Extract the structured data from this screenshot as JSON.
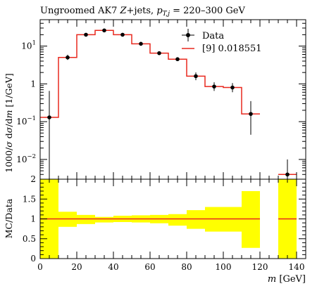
{
  "chart_data": [
    {
      "type": "line",
      "title": "Ungroomed AK7 Z+jets, p_T,j = 220–300 GeV",
      "title_parts": {
        "prefix": "Ungroomed AK7 ",
        "z": "Z",
        "mid": "+jets, ",
        "pt": "p",
        "pt_sub": "T,j",
        "range": " = 220–300 GeV"
      },
      "ylabel": "1000/σ dσ/dm [1/GeV]",
      "ylabel_parts": {
        "a": "1000/",
        "sigma": "σ",
        "b": " d",
        "sigma2": "σ",
        "c": "/d",
        "m": "m",
        "d": " [1/GeV]"
      },
      "yscale": "log",
      "ylim": [
        0.003,
        50
      ],
      "y_ticks": [
        {
          "value": 0.01,
          "base": "10",
          "exp": "−2"
        },
        {
          "value": 0.1,
          "base": "10",
          "exp": "−1"
        },
        {
          "value": 1,
          "base": "1",
          "exp": ""
        },
        {
          "value": 10,
          "base": "10",
          "exp": "1"
        }
      ],
      "xlim": [
        0,
        145
      ],
      "legend": [
        {
          "label": "Data",
          "color": "#000000"
        },
        {
          "label": "[9] 0.018551",
          "color": "#e8281e"
        }
      ],
      "legend_position": "top-right",
      "mc_bins": [
        {
          "x0": 0,
          "x1": 10,
          "y": 0.13
        },
        {
          "x0": 10,
          "x1": 20,
          "y": 5.0
        },
        {
          "x0": 20,
          "x1": 30,
          "y": 20
        },
        {
          "x0": 30,
          "x1": 40,
          "y": 26
        },
        {
          "x0": 40,
          "x1": 50,
          "y": 20
        },
        {
          "x0": 50,
          "x1": 60,
          "y": 11.5
        },
        {
          "x0": 60,
          "x1": 70,
          "y": 6.5
        },
        {
          "x0": 70,
          "x1": 80,
          "y": 4.5
        },
        {
          "x0": 80,
          "x1": 90,
          "y": 1.6
        },
        {
          "x0": 90,
          "x1": 100,
          "y": 0.85
        },
        {
          "x0": 100,
          "x1": 110,
          "y": 0.8
        },
        {
          "x0": 110,
          "x1": 120,
          "y": 0.16
        },
        {
          "x0": 130,
          "x1": 140,
          "y": 0.004
        }
      ],
      "data_points": [
        {
          "x": 5,
          "y": 0.13,
          "ylo": 0.003,
          "yhi": 0.65
        },
        {
          "x": 15,
          "y": 5.0,
          "ylo": 4.3,
          "yhi": 5.9
        },
        {
          "x": 25,
          "y": 20,
          "ylo": 18.5,
          "yhi": 21.5
        },
        {
          "x": 35,
          "y": 26,
          "ylo": 24.5,
          "yhi": 27.5
        },
        {
          "x": 45,
          "y": 20,
          "ylo": 18.8,
          "yhi": 21.2
        },
        {
          "x": 55,
          "y": 11.5,
          "ylo": 10.6,
          "yhi": 12.4
        },
        {
          "x": 65,
          "y": 6.5,
          "ylo": 6.0,
          "yhi": 7.0
        },
        {
          "x": 75,
          "y": 4.5,
          "ylo": 4.0,
          "yhi": 5.0
        },
        {
          "x": 85,
          "y": 1.6,
          "ylo": 1.25,
          "yhi": 2.0
        },
        {
          "x": 95,
          "y": 0.85,
          "ylo": 0.65,
          "yhi": 1.1
        },
        {
          "x": 105,
          "y": 0.8,
          "ylo": 0.6,
          "yhi": 1.05
        },
        {
          "x": 115,
          "y": 0.16,
          "ylo": 0.045,
          "yhi": 0.35
        },
        {
          "x": 135,
          "y": 0.004,
          "ylo": 0.003,
          "yhi": 0.01
        }
      ]
    },
    {
      "type": "area",
      "ylabel": "MC/Data",
      "xlabel_var": "m",
      "xlabel_unit": " [GeV]",
      "ylim": [
        0,
        2
      ],
      "y_ticks": [
        "0",
        "0.5",
        "1",
        "1.5",
        "2"
      ],
      "xlim": [
        0,
        145
      ],
      "x_ticks": [
        "0",
        "20",
        "40",
        "60",
        "80",
        "100",
        "120",
        "140"
      ],
      "band_color": "#ffff00",
      "ratio_color": "#e8281e",
      "ratio_value": 1,
      "ratio_segments": [
        [
          0,
          120
        ],
        [
          130,
          140
        ]
      ],
      "bands": [
        {
          "x0": 0,
          "x1": 10,
          "lo": 0.0,
          "hi": 2.0
        },
        {
          "x0": 10,
          "x1": 20,
          "lo": 0.8,
          "hi": 1.18
        },
        {
          "x0": 20,
          "x1": 30,
          "lo": 0.87,
          "hi": 1.1
        },
        {
          "x0": 30,
          "x1": 40,
          "lo": 0.91,
          "hi": 1.05
        },
        {
          "x0": 40,
          "x1": 50,
          "lo": 0.92,
          "hi": 1.08
        },
        {
          "x0": 50,
          "x1": 60,
          "lo": 0.91,
          "hi": 1.09
        },
        {
          "x0": 60,
          "x1": 70,
          "lo": 0.89,
          "hi": 1.1
        },
        {
          "x0": 70,
          "x1": 80,
          "lo": 0.83,
          "hi": 1.12
        },
        {
          "x0": 80,
          "x1": 90,
          "lo": 0.75,
          "hi": 1.22
        },
        {
          "x0": 90,
          "x1": 100,
          "lo": 0.68,
          "hi": 1.3
        },
        {
          "x0": 100,
          "x1": 110,
          "lo": 0.68,
          "hi": 1.3
        },
        {
          "x0": 110,
          "x1": 120,
          "lo": 0.27,
          "hi": 1.7
        },
        {
          "x0": 130,
          "x1": 140,
          "lo": 0.0,
          "hi": 2.0
        }
      ]
    }
  ]
}
